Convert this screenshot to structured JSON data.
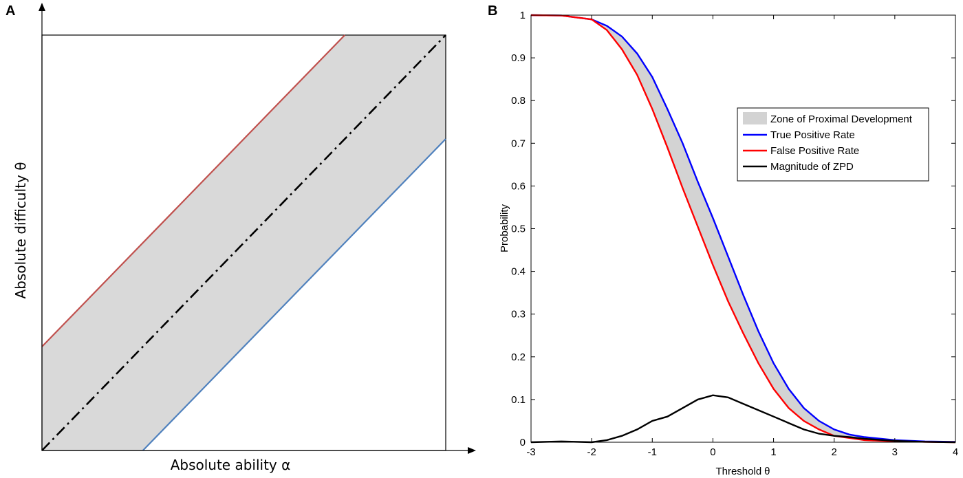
{
  "chart_data": [
    {
      "panel": "A",
      "type": "line",
      "xlabel": "Absolute ability α",
      "ylabel": "Absolute difficulty θ",
      "xlim": [
        0,
        1
      ],
      "ylim": [
        0,
        1
      ],
      "zone_lower_offset": -0.25,
      "zone_upper_offset": 0.25,
      "series": [
        {
          "name": "upper bound",
          "color": "#c0504d",
          "x": [
            0,
            0.75
          ],
          "y": [
            0.25,
            1.0
          ]
        },
        {
          "name": "identity",
          "color": "#000000",
          "style": "dash-dot",
          "x": [
            0,
            1
          ],
          "y": [
            0,
            1
          ]
        },
        {
          "name": "lower bound",
          "color": "#4f81bd",
          "x": [
            0.25,
            1.0
          ],
          "y": [
            0,
            0.75
          ]
        }
      ],
      "zone_color": "#d9d9d9"
    },
    {
      "panel": "B",
      "type": "line",
      "xlabel": "Threshold",
      "xlabel_symbol": "θ",
      "ylabel": "Probability",
      "xlim": [
        -3,
        4
      ],
      "ylim": [
        0,
        1
      ],
      "xticks": [
        "-3",
        "-2",
        "-1",
        "0",
        "1",
        "2",
        "3",
        "4"
      ],
      "yticks": [
        "0",
        "0.1",
        "0.2",
        "0.3",
        "0.4",
        "0.5",
        "0.6",
        "0.7",
        "0.8",
        "0.9",
        "1"
      ],
      "zone_color": "#d3d3d3",
      "legend": [
        {
          "label": "Zone of Proximal Development",
          "kind": "patch",
          "color": "#d3d3d3"
        },
        {
          "label": "True Positive Rate",
          "kind": "line",
          "color": "#0000ff"
        },
        {
          "label": "False Positive Rate",
          "kind": "line",
          "color": "#ff0000"
        },
        {
          "label": "Magnitude of ZPD",
          "kind": "line",
          "color": "#000000"
        }
      ],
      "x": [
        -3,
        -2.5,
        -2,
        -1.75,
        -1.5,
        -1.25,
        -1,
        -0.75,
        -0.5,
        -0.25,
        0,
        0.25,
        0.5,
        0.75,
        1,
        1.25,
        1.5,
        1.75,
        2,
        2.25,
        2.5,
        3,
        3.5,
        4
      ],
      "series": [
        {
          "name": "True Positive Rate",
          "color": "#0000ff",
          "values": [
            1.0,
            0.999,
            0.99,
            0.975,
            0.95,
            0.91,
            0.855,
            0.78,
            0.7,
            0.61,
            0.525,
            0.435,
            0.345,
            0.26,
            0.185,
            0.125,
            0.08,
            0.05,
            0.03,
            0.018,
            0.012,
            0.005,
            0.002,
            0.001
          ]
        },
        {
          "name": "False Positive Rate",
          "color": "#ff0000",
          "values": [
            1.0,
            0.999,
            0.99,
            0.965,
            0.92,
            0.86,
            0.78,
            0.69,
            0.595,
            0.505,
            0.415,
            0.33,
            0.255,
            0.185,
            0.125,
            0.08,
            0.05,
            0.03,
            0.015,
            0.01,
            0.005,
            0.002,
            0.001,
            0.0
          ]
        },
        {
          "name": "Magnitude of ZPD",
          "color": "#000000",
          "values": [
            0.0,
            0.002,
            0.0,
            0.005,
            0.015,
            0.03,
            0.05,
            0.06,
            0.08,
            0.1,
            0.11,
            0.105,
            0.09,
            0.075,
            0.06,
            0.045,
            0.03,
            0.02,
            0.015,
            0.012,
            0.008,
            0.003,
            0.001,
            0.0
          ]
        }
      ]
    }
  ],
  "labels": {
    "panel_a": "A",
    "panel_b": "B"
  }
}
